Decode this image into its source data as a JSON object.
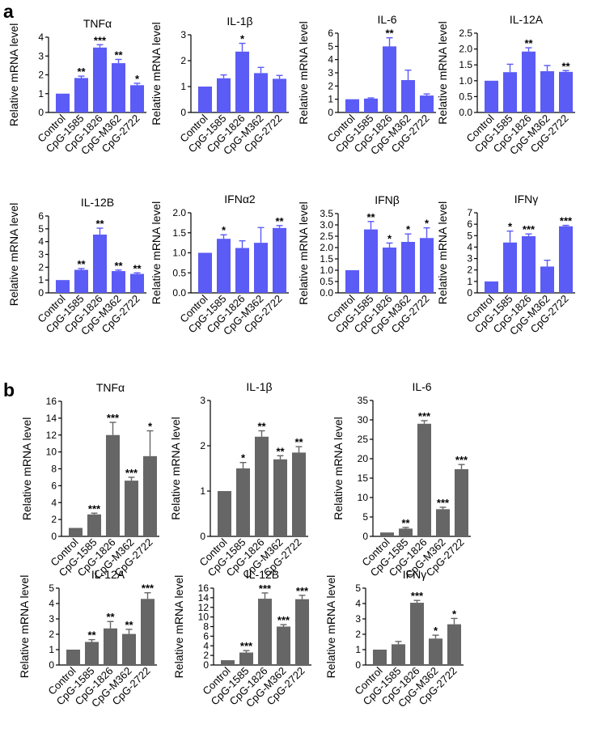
{
  "figure": {
    "panel_a_label": "a",
    "panel_b_label": "b",
    "ylabel": "Relative mRNA level",
    "colors": {
      "panel_a": "#5b5bf6",
      "panel_b": "#666666"
    }
  },
  "chart_data": [
    {
      "panel": "a",
      "type": "bar",
      "title": "TNFα",
      "ylabel": "Relative mRNA level",
      "categories": [
        "Control",
        "CpG-1585",
        "CpG-1826",
        "CpG-M362",
        "CpG-2722"
      ],
      "values": [
        1.0,
        1.83,
        3.45,
        2.62,
        1.45
      ],
      "errors": [
        0,
        0.1,
        0.15,
        0.2,
        0.1
      ],
      "significance": [
        "",
        "**",
        "***",
        "**",
        "*"
      ],
      "ylim": [
        0,
        4
      ],
      "yticks": [
        0,
        1,
        2,
        3,
        4
      ]
    },
    {
      "panel": "a",
      "type": "bar",
      "title": "IL-1β",
      "ylabel": "Relative mRNA level",
      "categories": [
        "Control",
        "CpG-1585",
        "CpG-1826",
        "CpG-M362",
        "CpG-2722"
      ],
      "values": [
        1.0,
        1.32,
        2.35,
        1.52,
        1.3
      ],
      "errors": [
        0,
        0.13,
        0.32,
        0.22,
        0.13
      ],
      "significance": [
        "",
        "",
        "*",
        "",
        ""
      ],
      "ylim": [
        0,
        3
      ],
      "yticks": [
        0,
        1,
        2,
        3
      ]
    },
    {
      "panel": "a",
      "type": "bar",
      "title": "IL-6",
      "ylabel": "Relative mRNA level",
      "categories": [
        "Control",
        "CpG-1585",
        "CpG-1826",
        "CpG-M362",
        "CpG-2722"
      ],
      "values": [
        1.0,
        1.05,
        5.0,
        2.45,
        1.28
      ],
      "errors": [
        0,
        0.05,
        0.65,
        0.75,
        0.12
      ],
      "significance": [
        "",
        "",
        "**",
        "",
        ""
      ],
      "ylim": [
        0,
        6
      ],
      "yticks": [
        0,
        1,
        2,
        3,
        4,
        5,
        6
      ]
    },
    {
      "panel": "a",
      "type": "bar",
      "title": "IL-12A",
      "ylabel": "Relative mRNA level",
      "categories": [
        "Control",
        "CpG-1585",
        "CpG-1826",
        "CpG-M362",
        "CpG-2722"
      ],
      "values": [
        1.0,
        1.27,
        1.92,
        1.3,
        1.28
      ],
      "errors": [
        0,
        0.25,
        0.12,
        0.18,
        0.04
      ],
      "significance": [
        "",
        "",
        "**",
        "",
        "**"
      ],
      "ylim": [
        0,
        2.5
      ],
      "yticks": [
        0,
        0.5,
        1.0,
        1.5,
        2.0,
        2.5
      ]
    },
    {
      "panel": "a",
      "type": "bar",
      "title": "IL-12B",
      "ylabel": "Relative mRNA level",
      "categories": [
        "Control",
        "CpG-1585",
        "CpG-1826",
        "CpG-M362",
        "CpG-2722"
      ],
      "values": [
        1.0,
        1.8,
        4.55,
        1.7,
        1.48
      ],
      "errors": [
        0,
        0.1,
        0.5,
        0.08,
        0.08
      ],
      "significance": [
        "",
        "**",
        "**",
        "**",
        "**"
      ],
      "ylim": [
        0,
        6
      ],
      "yticks": [
        0,
        1,
        2,
        3,
        4,
        5,
        6
      ]
    },
    {
      "panel": "a",
      "type": "bar",
      "title": "IFNα2",
      "ylabel": "Relative mRNA level",
      "categories": [
        "Control",
        "CpG-1585",
        "CpG-1826",
        "CpG-M362",
        "CpG-2722"
      ],
      "values": [
        1.0,
        1.35,
        1.12,
        1.25,
        1.62
      ],
      "errors": [
        0,
        0.1,
        0.18,
        0.38,
        0.06
      ],
      "significance": [
        "",
        "*",
        "",
        "",
        "**"
      ],
      "ylim": [
        0,
        2.0
      ],
      "yticks": [
        0,
        0.5,
        1.0,
        1.5,
        2.0
      ]
    },
    {
      "panel": "a",
      "type": "bar",
      "title": "IFNβ",
      "ylabel": "Relative mRNA level",
      "categories": [
        "Control",
        "CpG-1585",
        "CpG-1826",
        "CpG-M362",
        "CpG-2722"
      ],
      "values": [
        1.0,
        2.8,
        2.0,
        2.25,
        2.42
      ],
      "errors": [
        0,
        0.35,
        0.2,
        0.35,
        0.45
      ],
      "significance": [
        "",
        "**",
        "*",
        "*",
        "*"
      ],
      "ylim": [
        0,
        3.5
      ],
      "yticks": [
        0,
        0.5,
        1.0,
        1.5,
        2.0,
        2.5,
        3.0,
        3.5
      ]
    },
    {
      "panel": "a",
      "type": "bar",
      "title": "IFNγ",
      "ylabel": "Relative mRNA level",
      "categories": [
        "Control",
        "CpG-1585",
        "CpG-1826",
        "CpG-M362",
        "CpG-2722"
      ],
      "values": [
        1.0,
        4.4,
        4.95,
        2.3,
        5.82
      ],
      "errors": [
        0,
        1.0,
        0.2,
        0.55,
        0.08
      ],
      "significance": [
        "",
        "*",
        "***",
        "",
        "***"
      ],
      "ylim": [
        0,
        7
      ],
      "yticks": [
        0,
        1,
        2,
        3,
        4,
        5,
        6,
        7
      ]
    },
    {
      "panel": "b",
      "type": "bar",
      "title": "TNFα",
      "ylabel": "Relative mRNA level",
      "categories": [
        "Control",
        "CpG-1585",
        "CpG-1826",
        "CpG-M362",
        "CpG-2722"
      ],
      "values": [
        1.0,
        2.6,
        12.0,
        6.6,
        9.5
      ],
      "errors": [
        0,
        0.15,
        1.5,
        0.4,
        3.0
      ],
      "significance": [
        "",
        "***",
        "***",
        "***",
        "*"
      ],
      "ylim": [
        0,
        16
      ],
      "yticks": [
        0,
        2,
        4,
        6,
        8,
        10,
        12,
        14,
        16
      ]
    },
    {
      "panel": "b",
      "type": "bar",
      "title": "IL-1β",
      "ylabel": "Relative mRNA level",
      "categories": [
        "Control",
        "CpG-1585",
        "CpG-1826",
        "CpG-M362",
        "CpG-2722"
      ],
      "values": [
        1.0,
        1.5,
        2.2,
        1.7,
        1.85
      ],
      "errors": [
        0,
        0.13,
        0.13,
        0.08,
        0.13
      ],
      "significance": [
        "",
        "*",
        "**",
        "**",
        "**"
      ],
      "ylim": [
        0,
        3
      ],
      "yticks": [
        0,
        1,
        2,
        3
      ]
    },
    {
      "panel": "b",
      "type": "bar",
      "title": "IL-6",
      "ylabel": "Relative mRNA level",
      "categories": [
        "Control",
        "CpG-1585",
        "CpG-1826",
        "CpG-M362",
        "CpG-2722"
      ],
      "values": [
        1.0,
        2.0,
        29.0,
        7.0,
        17.3
      ],
      "errors": [
        0,
        0.3,
        0.8,
        0.5,
        1.2
      ],
      "significance": [
        "",
        "**",
        "***",
        "***",
        "***"
      ],
      "ylim": [
        0,
        35
      ],
      "yticks": [
        0,
        5,
        10,
        15,
        20,
        25,
        30,
        35
      ]
    },
    {
      "panel": "b",
      "type": "bar",
      "title": "IL-12A",
      "ylabel": "Relative mRNA level",
      "categories": [
        "Control",
        "CpG-1585",
        "CpG-1826",
        "CpG-M362",
        "CpG-2722"
      ],
      "values": [
        1.0,
        1.5,
        2.38,
        2.02,
        4.3
      ],
      "errors": [
        0,
        0.15,
        0.45,
        0.3,
        0.4
      ],
      "significance": [
        "",
        "**",
        "**",
        "**",
        "***"
      ],
      "ylim": [
        0,
        5
      ],
      "yticks": [
        0,
        1,
        2,
        3,
        4,
        5
      ]
    },
    {
      "panel": "b",
      "type": "bar",
      "title": "IL-12B",
      "ylabel": "Relative mRNA level",
      "categories": [
        "Control",
        "CpG-1585",
        "CpG-1826",
        "CpG-M362",
        "CpG-2722"
      ],
      "values": [
        1.0,
        2.6,
        13.8,
        8.0,
        13.7
      ],
      "errors": [
        0,
        0.4,
        1.2,
        0.4,
        0.8
      ],
      "significance": [
        "",
        "***",
        "***",
        "***",
        "***"
      ],
      "ylim": [
        0,
        16
      ],
      "yticks": [
        0,
        2,
        4,
        6,
        8,
        10,
        12,
        14,
        16
      ]
    },
    {
      "panel": "b",
      "type": "bar",
      "title": "IFNγ",
      "ylabel": "Relative mRNA level",
      "categories": [
        "Control",
        "CpG-1585",
        "CpG-1826",
        "CpG-M362",
        "CpG-2722"
      ],
      "values": [
        1.0,
        1.35,
        4.05,
        1.72,
        2.65
      ],
      "errors": [
        0,
        0.18,
        0.15,
        0.22,
        0.38
      ],
      "significance": [
        "",
        "",
        "***",
        "*",
        "*"
      ],
      "ylim": [
        0,
        5
      ],
      "yticks": [
        0,
        1,
        2,
        3,
        4,
        5
      ]
    }
  ]
}
